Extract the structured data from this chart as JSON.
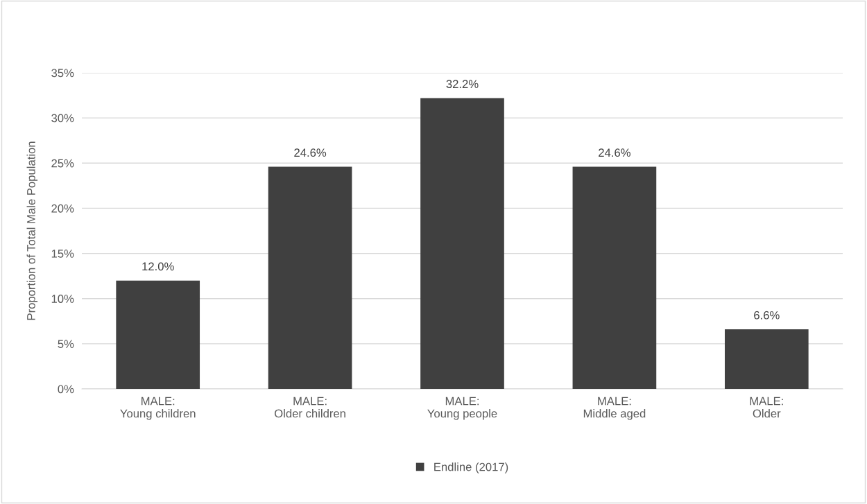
{
  "chart_data": {
    "type": "bar",
    "ylabel": "Proportion of Total Male Population",
    "categories": [
      "MALE:\nYoung children",
      "MALE:\nOlder children",
      "MALE:\nYoung people",
      "MALE:\nMiddle aged",
      "MALE:\nOlder"
    ],
    "series": [
      {
        "name": "Endline (2017)",
        "color": "#404040",
        "values": [
          12.0,
          24.6,
          32.2,
          24.6,
          6.6
        ],
        "value_labels": [
          "12.0%",
          "24.6%",
          "32.2%",
          "24.6%",
          "6.6%"
        ]
      }
    ],
    "ylim": [
      0,
      35
    ],
    "yticks": [
      {
        "value": 0,
        "label": "0%"
      },
      {
        "value": 5,
        "label": "5%"
      },
      {
        "value": 10,
        "label": "10%"
      },
      {
        "value": 15,
        "label": "15%"
      },
      {
        "value": 20,
        "label": "20%"
      },
      {
        "value": 25,
        "label": "25%"
      },
      {
        "value": 30,
        "label": "30%"
      },
      {
        "value": 35,
        "label": "35%"
      }
    ],
    "grid": "y",
    "legend": "bottom"
  }
}
